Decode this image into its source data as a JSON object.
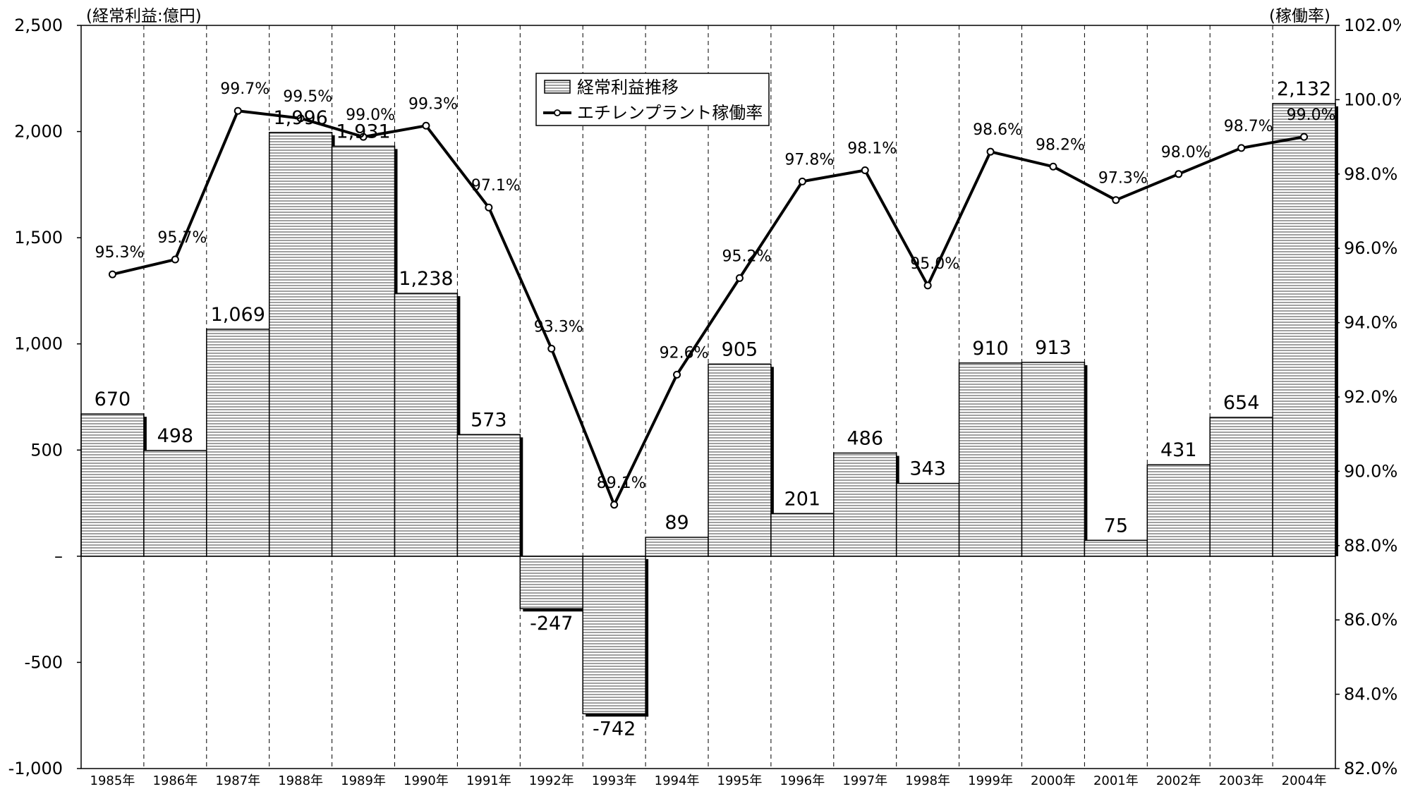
{
  "chart_data": {
    "type": "bar",
    "left_axis_label": "(経常利益:億円)",
    "right_axis_label": "(稼働率)",
    "categories": [
      "1985年",
      "1986年",
      "1987年",
      "1988年",
      "1989年",
      "1990年",
      "1991年",
      "1992年",
      "1993年",
      "1994年",
      "1995年",
      "1996年",
      "1997年",
      "1998年",
      "1999年",
      "2000年",
      "2001年",
      "2002年",
      "2003年",
      "2004年"
    ],
    "series": [
      {
        "name": "経常利益推移",
        "type": "bar",
        "axis": "left",
        "values": [
          670,
          498,
          1069,
          1996,
          1931,
          1238,
          573,
          -247,
          -742,
          89,
          905,
          201,
          486,
          343,
          910,
          913,
          75,
          431,
          654,
          2132
        ],
        "labels": [
          "670",
          "498",
          "1,069",
          "1,996",
          "1,931",
          "1,238",
          "573",
          "-247",
          "-742",
          "89",
          "905",
          "201",
          "486",
          "343",
          "910",
          "913",
          "75",
          "431",
          "654",
          "2,132"
        ]
      },
      {
        "name": "エチレンプラント稼働率",
        "type": "line",
        "axis": "right",
        "values": [
          95.3,
          95.7,
          99.7,
          99.5,
          99.0,
          99.3,
          97.1,
          93.3,
          89.1,
          92.6,
          95.2,
          97.8,
          98.1,
          95.0,
          98.6,
          98.2,
          97.3,
          98.0,
          98.7,
          99.0
        ],
        "labels": [
          "95.3%",
          "95.7%",
          "99.7%",
          "99.5%",
          "99.0%",
          "99.3%",
          "97.1%",
          "93.3%",
          "89.1%",
          "92.6%",
          "95.2%",
          "97.8%",
          "98.1%",
          "95.0%",
          "98.6%",
          "98.2%",
          "97.3%",
          "98.0%",
          "98.7%",
          "99.0%"
        ]
      }
    ],
    "ylim_left": [
      -1000,
      2500
    ],
    "yticks_left": [
      -1000,
      -500,
      0,
      500,
      1000,
      1500,
      2000,
      2500
    ],
    "yticks_left_labels": [
      "-1,000",
      "-500",
      "–",
      "500",
      "1,000",
      "1,500",
      "2,000",
      "2,500"
    ],
    "ylim_right": [
      82,
      102
    ],
    "yticks_right": [
      82,
      84,
      86,
      88,
      90,
      92,
      94,
      96,
      98,
      100,
      102
    ],
    "yticks_right_labels": [
      "82.0%",
      "84.0%",
      "86.0%",
      "88.0%",
      "90.0%",
      "92.0%",
      "94.0%",
      "96.0%",
      "98.0%",
      "100.0%",
      "102.0%"
    ],
    "grid": "vertical-dashed",
    "legend_position": "top-center"
  }
}
